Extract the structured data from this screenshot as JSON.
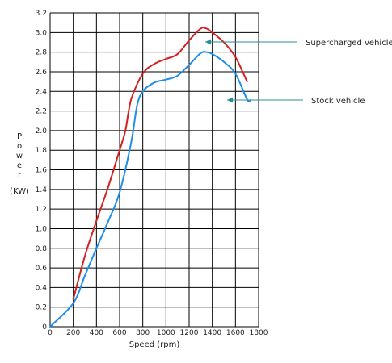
{
  "chart_data": {
    "type": "line",
    "xlabel": "Speed (rpm)",
    "ylabel_chars": [
      "P",
      "o",
      "w",
      "e",
      "r"
    ],
    "ylabel_unit": "(KW)",
    "xlim": [
      0,
      1800
    ],
    "ylim": [
      0,
      3.2
    ],
    "grid": true,
    "x_ticks": [
      "0",
      "200",
      "400",
      "600",
      "800",
      "1000",
      "1200",
      "1400",
      "1600",
      "1800"
    ],
    "y_ticks": [
      "0",
      "0.2",
      "0.4",
      "0.6",
      "0.8",
      "1.0",
      "1.2",
      "1.4",
      "1.6",
      "1.8",
      "2.0",
      "2.2",
      "2.4",
      "2.6",
      "2.8",
      "3.0",
      "3.2"
    ],
    "series": [
      {
        "name": "Supercharged vehicle",
        "color": "#d42020",
        "points": [
          [
            200,
            0.28
          ],
          [
            300,
            0.72
          ],
          [
            400,
            1.08
          ],
          [
            500,
            1.42
          ],
          [
            600,
            1.8
          ],
          [
            650,
            2.0
          ],
          [
            700,
            2.32
          ],
          [
            800,
            2.58
          ],
          [
            900,
            2.68
          ],
          [
            1000,
            2.73
          ],
          [
            1100,
            2.78
          ],
          [
            1200,
            2.92
          ],
          [
            1300,
            3.04
          ],
          [
            1350,
            3.04
          ],
          [
            1400,
            3.0
          ],
          [
            1500,
            2.9
          ],
          [
            1600,
            2.75
          ],
          [
            1700,
            2.5
          ]
        ]
      },
      {
        "name": "Stock vehicle",
        "color": "#1f8ee8",
        "points": [
          [
            0,
            0.0
          ],
          [
            200,
            0.24
          ],
          [
            300,
            0.52
          ],
          [
            400,
            0.8
          ],
          [
            500,
            1.07
          ],
          [
            600,
            1.37
          ],
          [
            700,
            1.88
          ],
          [
            750,
            2.25
          ],
          [
            800,
            2.4
          ],
          [
            900,
            2.49
          ],
          [
            1000,
            2.52
          ],
          [
            1100,
            2.56
          ],
          [
            1200,
            2.67
          ],
          [
            1300,
            2.79
          ],
          [
            1350,
            2.8
          ],
          [
            1400,
            2.78
          ],
          [
            1500,
            2.7
          ],
          [
            1600,
            2.58
          ],
          [
            1700,
            2.32
          ],
          [
            1730,
            2.31
          ]
        ]
      }
    ]
  },
  "annotations": {
    "supercharged": "Supercharged vehicle",
    "stock": "Stock vehicle",
    "arrow_color": "#2b8c96"
  }
}
